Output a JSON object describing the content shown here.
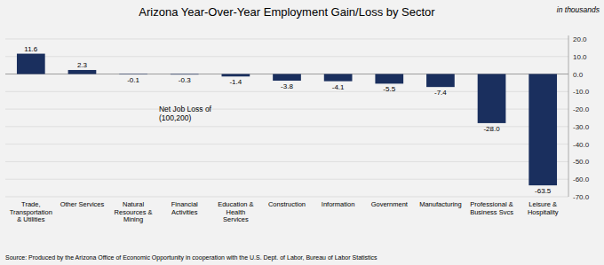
{
  "chart_data": {
    "type": "bar",
    "title": "Arizona Year-Over-Year Employment Gain/Loss by Sector",
    "subtitle": "in thousands",
    "categories": [
      "Trade,\nTransportation\n& Utilities",
      "Other Services",
      "Natural\nResources &\nMining",
      "Financial\nActivities",
      "Education &\nHealth\nServices",
      "Construction",
      "Information",
      "Government",
      "Manufacturing",
      "Professional &\nBusiness Svcs",
      "Leisure &\nHospitality"
    ],
    "values": [
      11.6,
      2.3,
      -0.1,
      -0.3,
      -1.4,
      -3.8,
      -4.1,
      -5.5,
      -7.4,
      -28.0,
      -63.5
    ],
    "value_labels": [
      "11.6",
      "2.3",
      "-0.1",
      "-0.3",
      "-1.4",
      "-3.8",
      "-4.1",
      "-5.5",
      "-7.4",
      "-28.0",
      "-63.5"
    ],
    "data_labels": true,
    "color": "#1a2f5e",
    "annotation": "Net Job Loss of\n(100,200)",
    "source": "Source: Produced by the Arizona Office of Economic Opportunity in cooperation with the U.S. Dept. of Labor, Bureau of Labor Statistics",
    "ylim": [
      -70,
      22
    ],
    "yticks": [
      {
        "value": 20.0,
        "label": "20.0"
      },
      {
        "value": 10.0,
        "label": "10.0"
      },
      {
        "value": 0.0,
        "label": "0.0"
      },
      {
        "value": -10.0,
        "label": "-10.0"
      },
      {
        "value": -20.0,
        "label": "-20.0"
      },
      {
        "value": -30.0,
        "label": "-30.0"
      },
      {
        "value": -40.0,
        "label": "-40.0"
      },
      {
        "value": -50.0,
        "label": "-50.0"
      },
      {
        "value": -60.0,
        "label": "-60.0"
      },
      {
        "value": -70.0,
        "label": "-70.0"
      }
    ],
    "grid": true
  }
}
